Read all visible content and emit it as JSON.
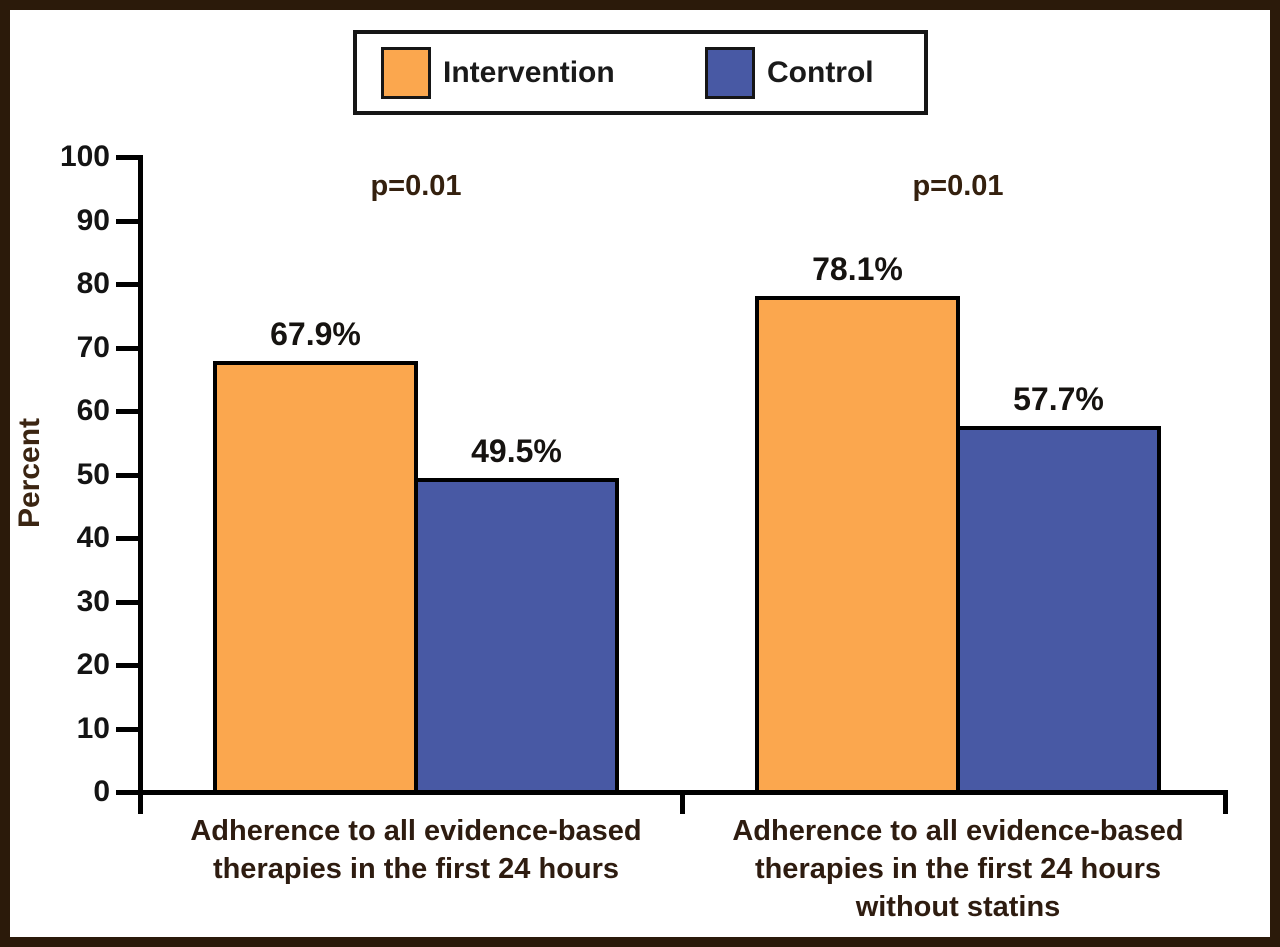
{
  "frame": {
    "border_color": "#2b1a0a",
    "background": "#ffffff"
  },
  "legend": {
    "position": "top",
    "items": [
      {
        "label": "Intervention",
        "color": "#fba74e"
      },
      {
        "label": "Control",
        "color": "#4859a4"
      }
    ]
  },
  "chart_data": {
    "type": "bar",
    "title": "",
    "xlabel": "",
    "ylabel": "Percent",
    "ylim": [
      0,
      100
    ],
    "ytick_step": 10,
    "grid": false,
    "legend_position": "top",
    "categories": [
      "Adherence to all evidence-based therapies in the first 24 hours",
      "Adherence to all evidence-based therapies in the first 24 hours without statins"
    ],
    "categories_lines": [
      [
        "Adherence to all evidence-based",
        "therapies in the first 24 hours"
      ],
      [
        "Adherence to all evidence-based",
        "therapies in the first 24 hours",
        "without statins"
      ]
    ],
    "series": [
      {
        "name": "Intervention",
        "color": "#fba74e",
        "values": [
          67.9,
          78.1
        ]
      },
      {
        "name": "Control",
        "color": "#4859a4",
        "values": [
          49.5,
          57.7
        ]
      }
    ],
    "value_labels": [
      [
        "67.9%",
        "49.5%"
      ],
      [
        "78.1%",
        "57.7%"
      ]
    ],
    "annotations": [
      {
        "text": "p=0.01",
        "group": 0
      },
      {
        "text": "p=0.01",
        "group": 1
      }
    ]
  }
}
